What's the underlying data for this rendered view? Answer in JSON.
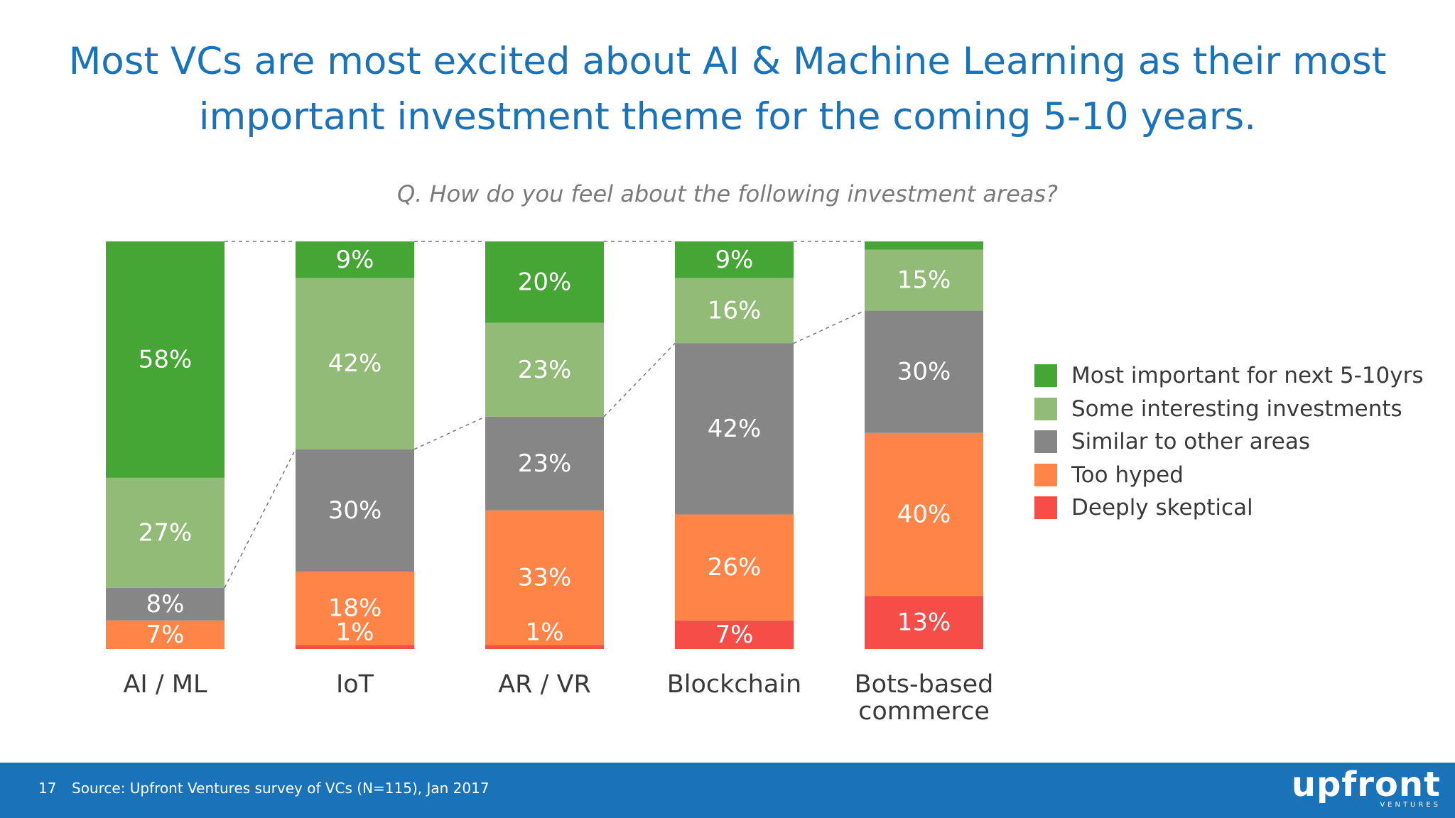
{
  "title_lines": [
    "Most VCs are most excited about AI & Machine Learning as their most",
    "important investment theme for the coming 5-10 years."
  ],
  "question": "Q. How do you feel about the following investment areas?",
  "legend": [
    {
      "label": "Most important for next 5-10yrs",
      "color": "#45a535"
    },
    {
      "label": "Some interesting investments",
      "color": "#93bb78"
    },
    {
      "label": "Similar to other areas",
      "color": "#868686"
    },
    {
      "label": "Too hyped",
      "color": "#fe8547"
    },
    {
      "label": "Deeply skeptical",
      "color": "#f64d48"
    }
  ],
  "footer": {
    "page_number": "17",
    "source": "Source: Upfront Ventures survey of VCs (N=115), Jan 2017",
    "logo_word": "upfront",
    "logo_sub": "VENTURES"
  },
  "chart_data": {
    "type": "bar",
    "stacked": true,
    "percent": true,
    "ylim": [
      0,
      100
    ],
    "legend_position": "right",
    "categories": [
      [
        "AI / ML"
      ],
      [
        "IoT"
      ],
      [
        "AR / VR"
      ],
      [
        "Blockchain"
      ],
      [
        "Bots-based",
        "commerce"
      ]
    ],
    "series": [
      {
        "name": "Most important for next 5-10yrs",
        "color": "#45a535",
        "values": [
          58,
          9,
          20,
          9,
          2
        ],
        "labels": [
          "58%",
          "9%",
          "20%",
          "9%",
          ""
        ]
      },
      {
        "name": "Some interesting investments",
        "color": "#93bb78",
        "values": [
          27,
          42,
          23,
          16,
          15
        ],
        "labels": [
          "27%",
          "42%",
          "23%",
          "16%",
          "15%"
        ]
      },
      {
        "name": "Similar to other areas",
        "color": "#868686",
        "values": [
          8,
          30,
          23,
          42,
          30
        ],
        "labels": [
          "8%",
          "30%",
          "23%",
          "42%",
          "30%"
        ]
      },
      {
        "name": "Too hyped",
        "color": "#fe8547",
        "values": [
          7,
          18,
          33,
          26,
          40
        ],
        "labels": [
          "7%",
          "18%",
          "33%",
          "26%",
          "40%"
        ]
      },
      {
        "name": "Deeply skeptical",
        "color": "#f64d48",
        "values": [
          0,
          1,
          1,
          7,
          13
        ],
        "labels": [
          "",
          "1%",
          "1%",
          "7%",
          "13%"
        ]
      }
    ]
  }
}
